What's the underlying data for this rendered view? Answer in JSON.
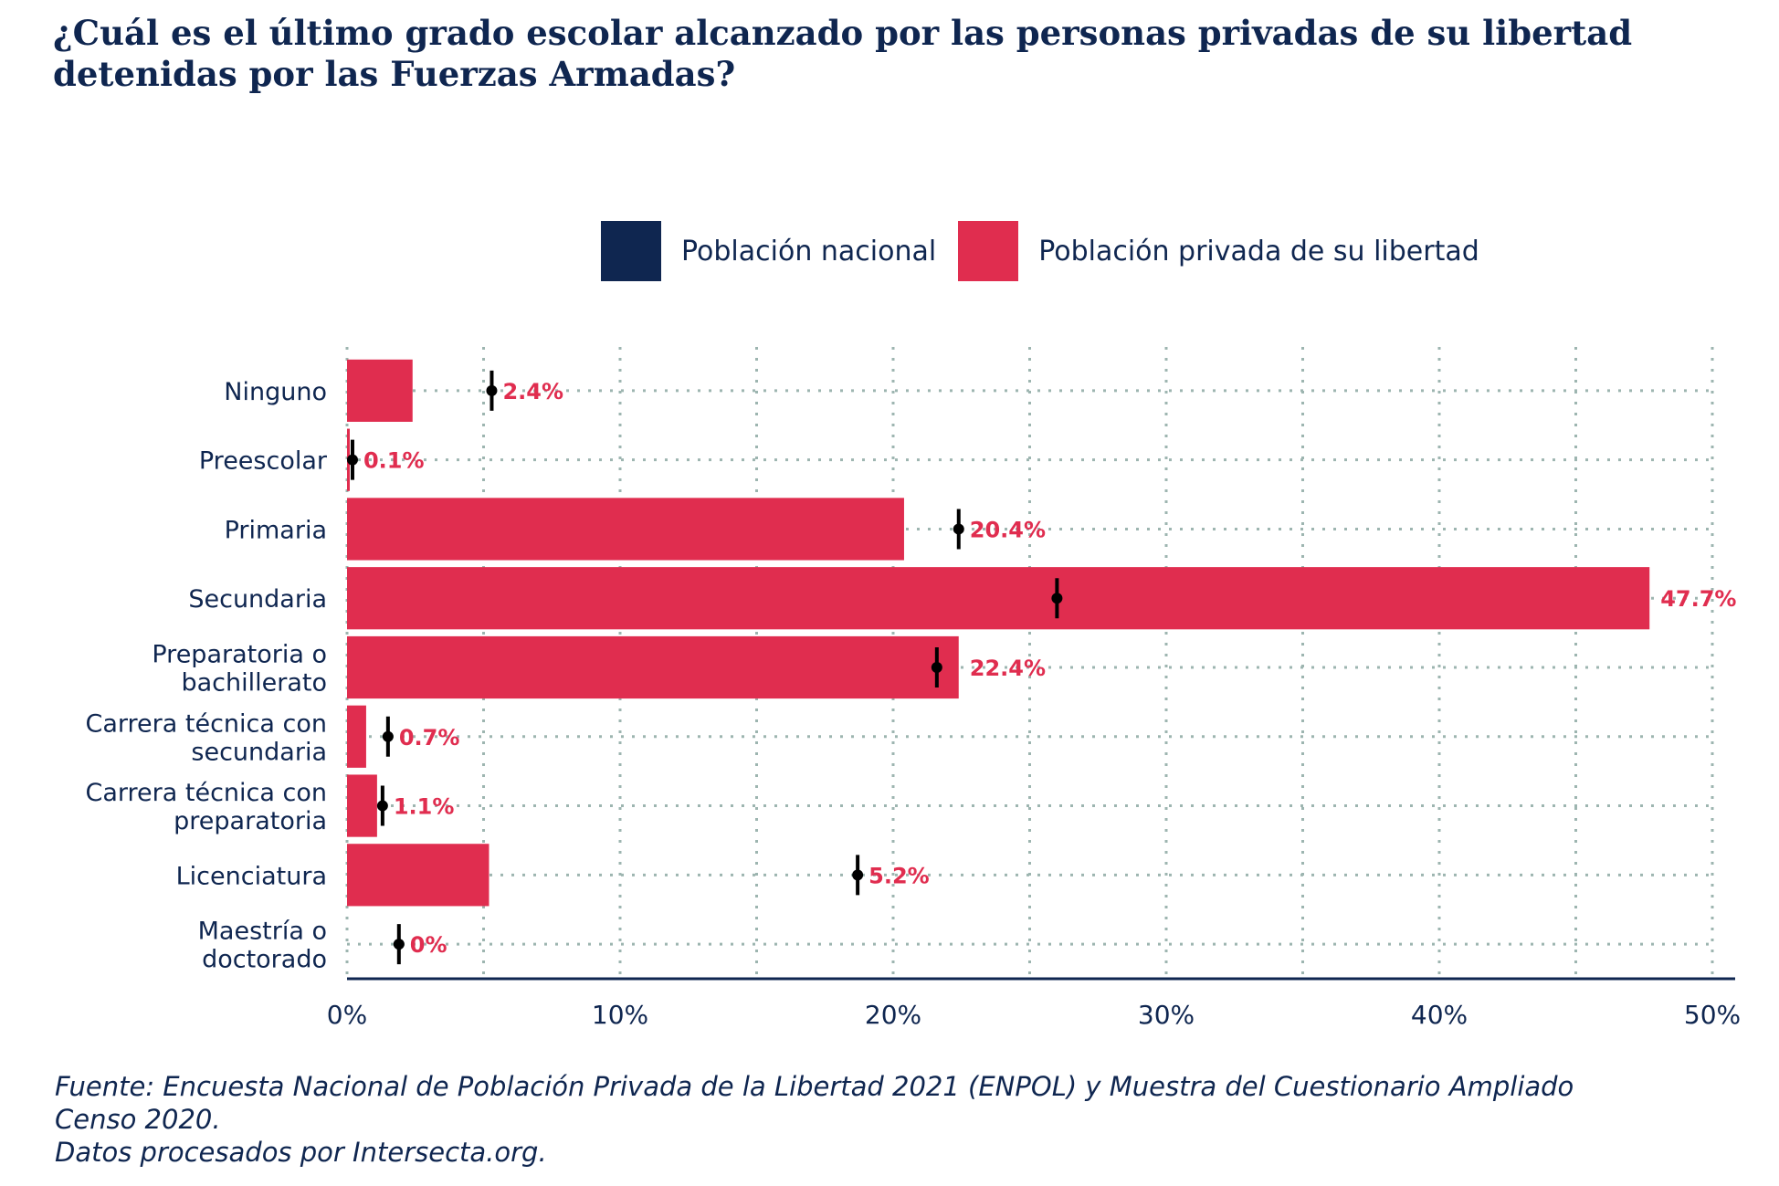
{
  "title_lines": [
    "¿Cuál es el último grado escolar alcanzado por las personas privadas de su libertad",
    "detenidas por las Fuerzas Armadas?"
  ],
  "legend": [
    {
      "label": "Población nacional",
      "color": "#0f2650"
    },
    {
      "label": "Población privada de su libertad",
      "color": "#e02d4f"
    }
  ],
  "source_lines": [
    "Fuente: Encuesta Nacional de Población Privada de la Libertad 2021 (ENPOL) y Muestra del Cuestionario Ampliado",
    "Censo 2020.",
    "Datos procesados por Intersecta.org."
  ],
  "colors": {
    "bar": "#e02d4f",
    "national_marker": "#000000",
    "axis": "#0f2650",
    "grid": "#9db5b0",
    "text": "#0f2650"
  },
  "chart_data": {
    "type": "bar",
    "orientation": "horizontal",
    "categories": [
      [
        "Ninguno"
      ],
      [
        "Preescolar"
      ],
      [
        "Primaria"
      ],
      [
        "Secundaria"
      ],
      [
        "Preparatoria o",
        "bachillerato"
      ],
      [
        "Carrera técnica con",
        "secundaria"
      ],
      [
        "Carrera técnica con",
        "preparatoria"
      ],
      [
        "Licenciatura"
      ],
      [
        "Maestría o",
        "doctorado"
      ]
    ],
    "series": [
      {
        "name": "Población privada de su libertad",
        "values": [
          2.4,
          0.1,
          20.4,
          47.7,
          22.4,
          0.7,
          1.1,
          5.2,
          0
        ],
        "labels": [
          "2.4%",
          "0.1%",
          "20.4%",
          "47.7%",
          "22.4%",
          "0.7%",
          "1.1%",
          "5.2%",
          "0%"
        ]
      },
      {
        "name": "Población nacional",
        "values": [
          5.3,
          0.2,
          22.4,
          26.0,
          21.6,
          1.5,
          1.3,
          18.7,
          1.9
        ]
      }
    ],
    "xlim": [
      0,
      50
    ],
    "xticks": [
      0,
      10,
      20,
      30,
      40,
      50
    ],
    "xtick_labels": [
      "0%",
      "10%",
      "20%",
      "30%",
      "40%",
      "50%"
    ],
    "grid": true,
    "legend_position": "top"
  }
}
